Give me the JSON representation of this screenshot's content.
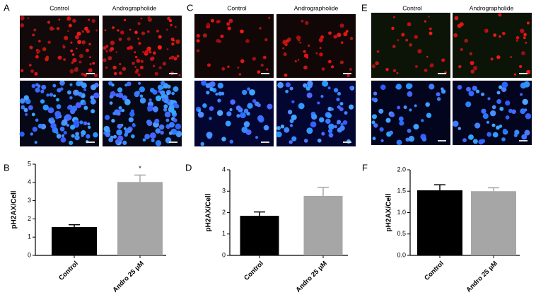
{
  "figure": {
    "panels": [
      {
        "letter": "A",
        "col_labels": [
          "Control",
          "Andrographolide"
        ]
      },
      {
        "letter": "C",
        "col_labels": [
          "Control",
          "Andrographolide"
        ]
      },
      {
        "letter": "E",
        "col_labels": [
          "Control",
          "Andrographolide"
        ]
      }
    ],
    "chart_letters": [
      "B",
      "D",
      "F"
    ]
  },
  "chart_data": [
    {
      "type": "bar",
      "y_label": "pH2AX/Cell",
      "categories": [
        "Control",
        "Andro 25 μM"
      ],
      "values": [
        1.55,
        4.02
      ],
      "errors": [
        0.13,
        0.38
      ],
      "colors": [
        "#000000",
        "#a6a6a6"
      ],
      "annotation": "*",
      "ylim": [
        0,
        5
      ],
      "yticks": [
        0,
        1,
        2,
        3,
        4,
        5
      ]
    },
    {
      "type": "bar",
      "y_label": "pH2AX/Cell",
      "categories": [
        "Control",
        "Andro 25 μM"
      ],
      "values": [
        1.85,
        2.78
      ],
      "errors": [
        0.18,
        0.4
      ],
      "colors": [
        "#000000",
        "#a6a6a6"
      ],
      "ylim": [
        0,
        4
      ],
      "yticks": [
        0,
        1,
        2,
        3,
        4
      ]
    },
    {
      "type": "bar",
      "y_label": "pH2AX/Cell",
      "categories": [
        "Control",
        "Andro 25 μM"
      ],
      "values": [
        1.52,
        1.5
      ],
      "errors": [
        0.13,
        0.08
      ],
      "colors": [
        "#000000",
        "#a6a6a6"
      ],
      "ylim": [
        0,
        2
      ],
      "yticks": [
        {
          "value": 0,
          "label": "0.0"
        },
        0.5,
        {
          "value": 1,
          "label": "1.0"
        },
        1.5,
        {
          "value": 2,
          "label": "2.0"
        }
      ]
    }
  ]
}
